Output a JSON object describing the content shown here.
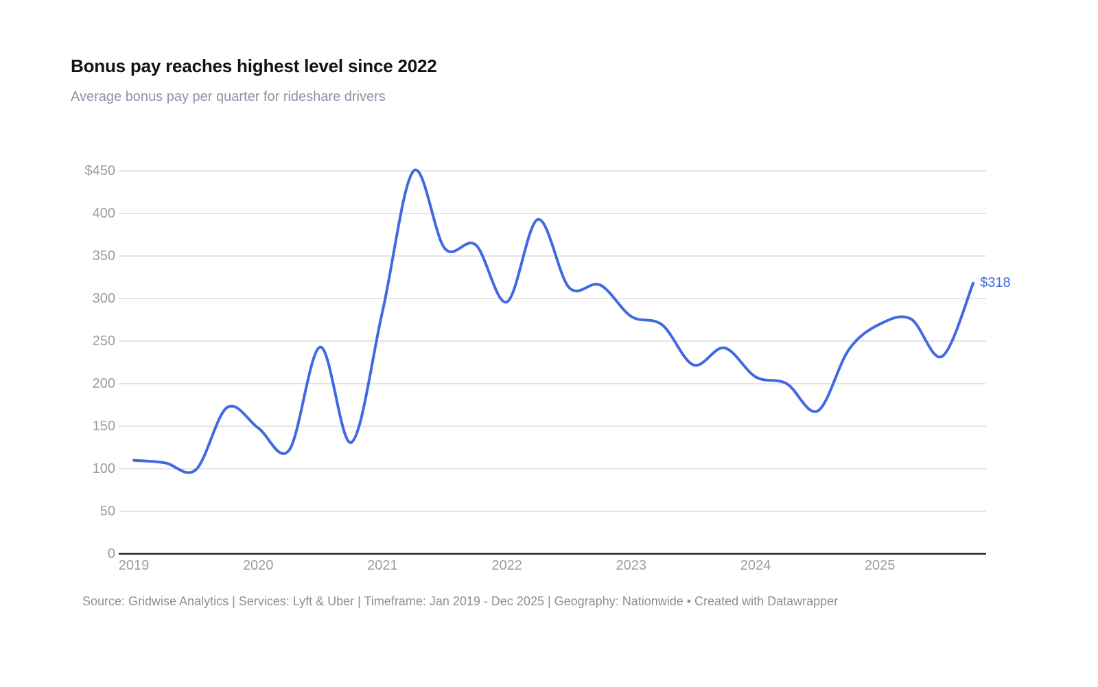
{
  "header": {
    "title": "Bonus pay reaches highest level since 2022",
    "subtitle": "Average bonus pay per quarter for rideshare drivers"
  },
  "chart_data": {
    "type": "line",
    "title": "Bonus pay reaches highest level since 2022",
    "subtitle": "Average bonus pay per quarter for rideshare drivers",
    "series_name": "Average bonus pay per quarter for rideshare drivers ($)",
    "x": [
      "Q1 2019",
      "Q2 2019",
      "Q3 2019",
      "Q4 2019",
      "Q1 2020",
      "Q2 2020",
      "Q3 2020",
      "Q4 2020",
      "Q1 2021",
      "Q2 2021",
      "Q3 2021",
      "Q4 2021",
      "Q1 2022",
      "Q2 2022",
      "Q3 2022",
      "Q4 2022",
      "Q1 2023",
      "Q2 2023",
      "Q3 2023",
      "Q4 2023",
      "Q1 2024",
      "Q2 2024",
      "Q3 2024",
      "Q4 2024",
      "Q1 2025",
      "Q2 2025",
      "Q3 2025",
      "Q4 2025"
    ],
    "values": [
      110,
      107,
      99,
      172,
      148,
      122,
      243,
      131,
      285,
      450,
      359,
      363,
      296,
      393,
      313,
      316,
      279,
      269,
      222,
      242,
      208,
      200,
      168,
      240,
      270,
      276,
      232,
      318
    ],
    "x_ticks": [
      "2019",
      "2020",
      "2021",
      "2022",
      "2023",
      "2024",
      "2025"
    ],
    "y_ticks": [
      "$450",
      "400",
      "350",
      "300",
      "250",
      "200",
      "150",
      "100",
      "50",
      "0"
    ],
    "y_tick_values": [
      450,
      400,
      350,
      300,
      250,
      200,
      150,
      100,
      50,
      0
    ],
    "ylim": [
      0,
      450
    ],
    "grid": true,
    "legend_position": "none",
    "end_label": "$318",
    "line_color": "#4169e1",
    "grid_color": "#dcdcdc",
    "axis_color": "#2b2b2b"
  },
  "footer": {
    "source": "Source: Gridwise Analytics | Services: Lyft & Uber | Timeframe: Jan 2019 - Dec 2025 | Geography: Nationwide • Created with Datawrapper"
  }
}
